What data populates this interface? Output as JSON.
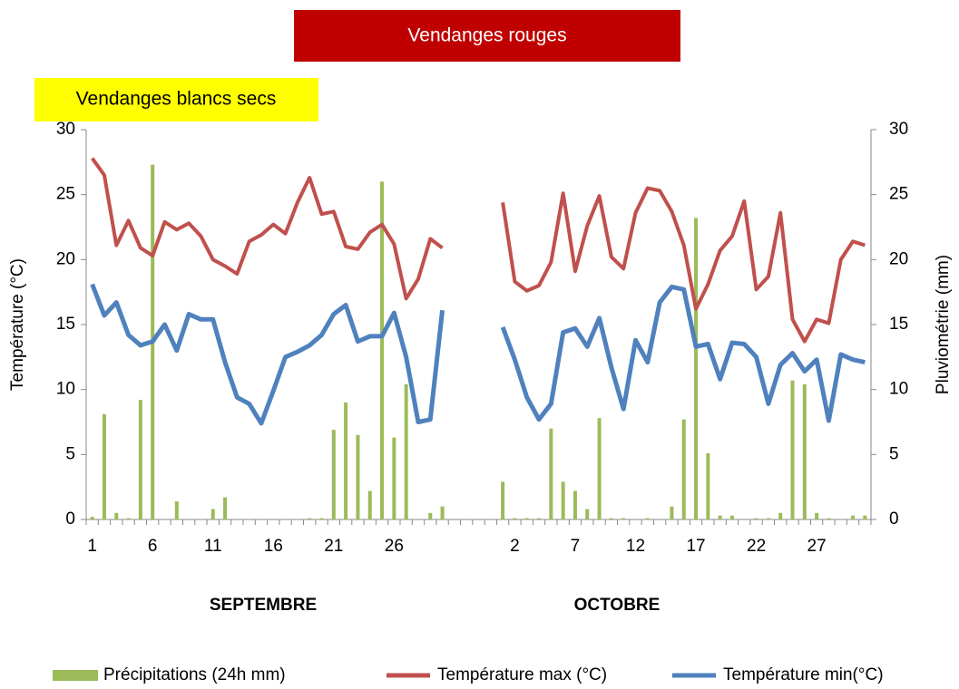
{
  "chart_data": {
    "type": "bar-line",
    "annotations": [
      "Vendanges rouges",
      "Vendanges blancs secs"
    ],
    "ylabel": "Température (°C)",
    "y2label": "Pluviométrie (mm)",
    "groups": [
      "SEPTEMBRE",
      "OCTOBRE"
    ],
    "categories": [
      "1",
      null,
      null,
      null,
      null,
      "6",
      null,
      null,
      null,
      null,
      "11",
      null,
      null,
      null,
      null,
      "16",
      null,
      null,
      null,
      null,
      "21",
      null,
      null,
      null,
      null,
      "26",
      null,
      null,
      null,
      null,
      null,
      null,
      null,
      null,
      null,
      "2",
      null,
      null,
      null,
      null,
      "7",
      null,
      null,
      null,
      null,
      "12",
      null,
      null,
      null,
      null,
      "17",
      null,
      null,
      null,
      null,
      "22",
      null,
      null,
      null,
      null,
      "27",
      null,
      null,
      null,
      null
    ],
    "ylim": [
      0,
      30
    ],
    "yticks": [
      0,
      5,
      10,
      15,
      20,
      25,
      30
    ],
    "y2lim": [
      0,
      30
    ],
    "y2ticks": [
      0,
      5,
      10,
      15,
      20,
      25,
      30
    ],
    "series": [
      {
        "name": "Précipitations (24h mm)",
        "kind": "bar",
        "axis": "y2",
        "color": "#9bbb59",
        "values": [
          0.2,
          8.1,
          0.5,
          0.1,
          9.2,
          27.3,
          0,
          1.4,
          0,
          0,
          0.8,
          1.7,
          0,
          0,
          0,
          0,
          0,
          0,
          0.1,
          0.1,
          6.9,
          9.0,
          6.5,
          2.2,
          26.0,
          6.3,
          10.4,
          0,
          0.5,
          1.0,
          null,
          null,
          null,
          null,
          2.9,
          0.1,
          0.1,
          0.1,
          7.0,
          2.9,
          2.2,
          0.8,
          7.8,
          0.1,
          0.1,
          0,
          0.1,
          0,
          1.0,
          7.7,
          23.2,
          5.1,
          0.3,
          0.3,
          0,
          0.1,
          0.1,
          0.5,
          10.7,
          10.4,
          0.5,
          0.1,
          0,
          0.3,
          0.3
        ]
      },
      {
        "name": "Température max (°C)",
        "kind": "line",
        "color": "#c0504d",
        "values": [
          27.8,
          26.5,
          21.1,
          23.0,
          20.9,
          20.3,
          22.9,
          22.3,
          22.8,
          21.8,
          20.0,
          19.5,
          18.9,
          21.4,
          21.9,
          22.7,
          22.0,
          24.4,
          26.3,
          23.5,
          23.7,
          21.0,
          20.8,
          22.1,
          22.7,
          21.2,
          17.0,
          18.5,
          21.6,
          20.9,
          null,
          null,
          null,
          null,
          24.4,
          18.3,
          17.6,
          18.0,
          19.8,
          25.1,
          19.1,
          22.6,
          24.9,
          20.2,
          19.3,
          23.6,
          25.5,
          25.3,
          23.7,
          21.1,
          16.2,
          18.1,
          20.7,
          21.8,
          24.5,
          17.7,
          18.7,
          23.6,
          15.4,
          13.7,
          15.4,
          15.1,
          20.0,
          21.4,
          21.1
        ]
      },
      {
        "name": "Température min(°C)",
        "kind": "line",
        "color": "#4f81bd",
        "values": [
          18.1,
          15.7,
          16.7,
          14.2,
          13.4,
          13.7,
          15.0,
          13.0,
          15.8,
          15.4,
          15.4,
          12.1,
          9.4,
          8.9,
          7.4,
          9.9,
          12.5,
          12.9,
          13.4,
          14.2,
          15.8,
          16.5,
          13.7,
          14.1,
          14.1,
          15.9,
          12.5,
          7.5,
          7.7,
          16.1,
          null,
          null,
          null,
          null,
          14.8,
          12.3,
          9.4,
          7.7,
          8.9,
          14.4,
          14.7,
          13.3,
          15.5,
          11.7,
          8.5,
          13.8,
          12.1,
          16.7,
          17.9,
          17.7,
          13.3,
          13.5,
          10.8,
          13.6,
          13.5,
          12.5,
          8.9,
          11.9,
          12.8,
          11.4,
          12.3,
          7.6,
          12.7,
          12.3,
          12.1
        ]
      }
    ]
  }
}
